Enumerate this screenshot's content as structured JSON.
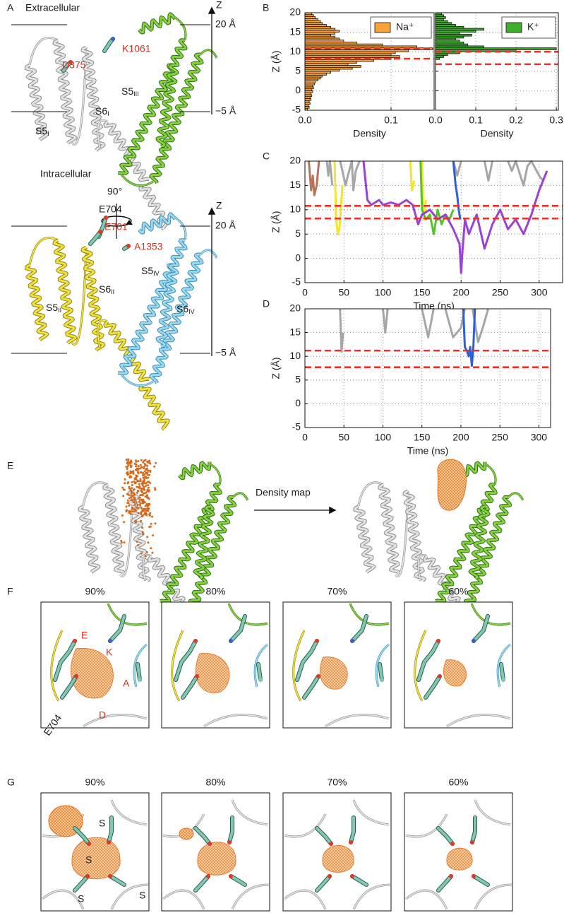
{
  "panel_a": {
    "label": "A",
    "extracellular": "Extracellular",
    "intracellular": "Intracellular",
    "rotation": "90°",
    "top": {
      "axis": "Z",
      "upper": "20 Å",
      "lower": "−5 Å",
      "residues": [
        "K1061",
        "D375"
      ],
      "helices": [
        {
          "name": "S5",
          "sub": "III"
        },
        {
          "name": "S6",
          "sub": "I"
        },
        {
          "name": "S5",
          "sub": "I"
        }
      ]
    },
    "bottom": {
      "axis": "Z",
      "upper": "20 Å",
      "lower": "−5 Å",
      "residues": [
        "E704",
        "E701",
        "A1353"
      ],
      "helices": [
        {
          "name": "S5",
          "sub": "IV"
        },
        {
          "name": "S6",
          "sub": "II"
        },
        {
          "name": "S5",
          "sub": "II"
        },
        {
          "name": "S6",
          "sub": "IV"
        }
      ]
    }
  },
  "chart_data": [
    {
      "type": "histogram",
      "panel": "B",
      "orientation": "horizontal",
      "x_label": "Density",
      "y_label": "Z (Å)",
      "xlim": [
        0,
        0.15
      ],
      "xticks": [
        {
          "value": 0,
          "label": "0.0"
        },
        0.1
      ],
      "ylim": [
        -5,
        20
      ],
      "yticks": [
        -5,
        0,
        5,
        10,
        15,
        20
      ],
      "grid": true,
      "legend": "upper right",
      "reference_lines": [
        10.8,
        8.2
      ],
      "reference_color": "#e8322a",
      "bins": [
        -5,
        -4.5,
        -4,
        -3.5,
        -3,
        -2.5,
        -2,
        -1.5,
        -1,
        -0.5,
        0,
        0.5,
        1,
        1.5,
        2,
        2.5,
        3,
        3.5,
        4,
        4.5,
        5,
        5.5,
        6,
        6.5,
        7,
        7.5,
        8,
        8.5,
        9,
        9.5,
        10,
        10.5,
        11,
        11.5,
        12,
        12.5,
        13,
        13.5,
        14,
        14.5,
        15,
        15.5,
        16,
        16.5,
        17,
        17.5,
        18,
        18.5,
        19,
        19.5,
        20
      ],
      "series": [
        {
          "name": "Na⁺",
          "color": "#f7a23a",
          "values": [
            0.003,
            0.005,
            0.004,
            0.006,
            0.005,
            0.007,
            0.006,
            0.008,
            0.007,
            0.009,
            0.008,
            0.01,
            0.009,
            0.011,
            0.012,
            0.015,
            0.018,
            0.02,
            0.025,
            0.03,
            0.04,
            0.055,
            0.065,
            0.05,
            0.06,
            0.08,
            0.1,
            0.11,
            0.1,
            0.105,
            0.12,
            0.148,
            0.13,
            0.09,
            0.06,
            0.045,
            0.04,
            0.035,
            0.03,
            0.035,
            0.04,
            0.035,
            0.03,
            0.025,
            0.02,
            0.018,
            0.015,
            0.012,
            0.01,
            0.008
          ]
        }
      ]
    },
    {
      "type": "histogram",
      "orientation": "horizontal",
      "x_label": "Density",
      "xlim": [
        0,
        0.305
      ],
      "xticks": [
        {
          "value": 0,
          "label": "0.0"
        },
        0.1,
        0.2,
        0.3
      ],
      "ylim": [
        -5,
        20
      ],
      "yticks": [
        -5,
        0,
        5,
        10,
        15,
        20
      ],
      "show_ytick_labels": false,
      "grid": true,
      "legend": "upper right",
      "reference_lines": [
        10,
        6.8
      ],
      "reference_color": "#e8322a",
      "bins": [
        -5,
        -4.5,
        -4,
        -3.5,
        -3,
        -2.5,
        -2,
        -1.5,
        -1,
        -0.5,
        0,
        0.5,
        1,
        1.5,
        2,
        2.5,
        3,
        3.5,
        4,
        4.5,
        5,
        5.5,
        6,
        6.5,
        7,
        7.5,
        8,
        8.5,
        9,
        9.5,
        10,
        10.5,
        11,
        11.5,
        12,
        12.5,
        13,
        13.5,
        14,
        14.5,
        15,
        15.5,
        16,
        16.5,
        17,
        17.5,
        18,
        18.5,
        19,
        19.5,
        20
      ],
      "series": [
        {
          "name": "K⁺",
          "color": "#3fae2a",
          "values": [
            0,
            0,
            0,
            0,
            0,
            0,
            0,
            0,
            0,
            0,
            0,
            0,
            0,
            0,
            0,
            0,
            0,
            0,
            0,
            0,
            0,
            0,
            0,
            0,
            0,
            0,
            0.01,
            0.02,
            0.03,
            0.06,
            0.2,
            0.3,
            0.12,
            0.08,
            0.07,
            0.06,
            0.05,
            0.07,
            0.09,
            0.06,
            0.1,
            0.12,
            0.07,
            0.05,
            0.04,
            0.03,
            0.02,
            0.025,
            0.02,
            0.015
          ]
        }
      ]
    },
    {
      "type": "line",
      "panel": "C",
      "x_label": "Time (ns)",
      "y_label": "Z (Å)",
      "xlim": [
        0,
        330
      ],
      "xticks": [
        0,
        50,
        100,
        150,
        200,
        250,
        300
      ],
      "ylim": [
        -5,
        20
      ],
      "yticks": [
        -5,
        0,
        5,
        10,
        15,
        20
      ],
      "grid": true,
      "reference_lines": [
        10.8,
        8.2
      ],
      "reference_color": "#e8322a",
      "series": [
        {
          "color": "#a6a6a6",
          "x": [
            28,
            30,
            32,
            35,
            null,
            45,
            48,
            52,
            55,
            60,
            62,
            65,
            70,
            null,
            190,
            195,
            200,
            null,
            230,
            235,
            240,
            null,
            260,
            265,
            270,
            280,
            285,
            290,
            300,
            305
          ],
          "values": [
            20,
            17,
            20,
            15,
            null,
            20,
            18,
            15,
            17,
            20,
            14,
            18,
            20,
            null,
            20,
            17,
            20,
            null,
            20,
            16,
            20,
            null,
            20,
            18,
            20,
            15,
            19,
            20,
            17,
            16
          ]
        },
        {
          "color": "#b8735c",
          "x": [
            5,
            8,
            10,
            12,
            15,
            18
          ],
          "values": [
            20,
            14,
            17,
            13,
            15,
            20
          ]
        },
        {
          "color": "#f3e52c",
          "x": [
            38,
            40,
            42,
            44,
            46,
            48,
            null,
            135,
            137,
            140,
            null,
            150,
            152,
            155
          ],
          "values": [
            20,
            8,
            5,
            6,
            10,
            15,
            null,
            20,
            14,
            16,
            null,
            20,
            8,
            12
          ]
        },
        {
          "color": "#52c526",
          "x": [
            148,
            150,
            155,
            160,
            165,
            170,
            175,
            180,
            185,
            190
          ],
          "values": [
            20,
            10,
            8,
            9,
            5,
            10,
            7,
            9,
            8,
            10
          ]
        },
        {
          "color": "#2d5fd8",
          "x": [
            190,
            193,
            195,
            197,
            199
          ],
          "values": [
            20,
            15,
            13,
            10,
            8
          ]
        },
        {
          "color": "#9a42d6",
          "x": [
            75,
            80,
            85,
            95,
            100,
            110,
            120,
            130,
            138,
            145,
            150,
            160,
            170,
            180,
            190,
            198,
            200,
            202,
            205,
            210,
            220,
            230,
            240,
            250,
            260,
            270,
            280,
            290,
            300,
            310
          ],
          "values": [
            20,
            12,
            11,
            12,
            11,
            11.5,
            11,
            12,
            11,
            7,
            9,
            10,
            8,
            9,
            6,
            3,
            -3,
            2,
            8,
            5,
            9,
            2,
            7,
            10,
            6,
            8,
            5,
            9,
            14,
            18
          ]
        }
      ]
    },
    {
      "type": "line",
      "panel": "D",
      "x_label": "Time (ns)",
      "y_label": "Z (Å)",
      "xlim": [
        0,
        315
      ],
      "xticks": [
        0,
        50,
        100,
        150,
        200,
        250,
        300
      ],
      "ylim": [
        -5,
        20
      ],
      "yticks": [
        -5,
        0,
        5,
        10,
        15,
        20
      ],
      "grid": true,
      "reference_lines": [
        11.2,
        7.7
      ],
      "reference_color": "#e8322a",
      "series": [
        {
          "color": "#a6a6a6",
          "x": [
            45,
            47,
            49,
            null,
            100,
            103,
            106,
            null,
            150,
            158,
            165,
            null,
            180,
            190,
            200,
            205,
            null,
            215,
            222,
            228,
            235
          ],
          "values": [
            20,
            11,
            15,
            null,
            20,
            15,
            20,
            null,
            20,
            14,
            20,
            null,
            20,
            14,
            16,
            20,
            null,
            20,
            13,
            16,
            20
          ]
        },
        {
          "color": "#2d5fd8",
          "x": [
            203,
            205,
            208,
            210,
            212,
            214,
            216,
            218
          ],
          "values": [
            20,
            12,
            11,
            10,
            12,
            8,
            12,
            20
          ]
        }
      ]
    }
  ],
  "panel_e": {
    "label": "E",
    "arrow_label": "Density map"
  },
  "panel_f": {
    "label": "F",
    "thresholds": [
      "90%",
      "80%",
      "70%",
      "60%"
    ],
    "annotations": [
      "E",
      "K",
      "A",
      "D",
      "E704"
    ]
  },
  "panel_g": {
    "label": "G",
    "thresholds": [
      "90%",
      "80%",
      "70%",
      "60%"
    ],
    "annotations": [
      "S",
      "S",
      "S",
      "S"
    ]
  }
}
